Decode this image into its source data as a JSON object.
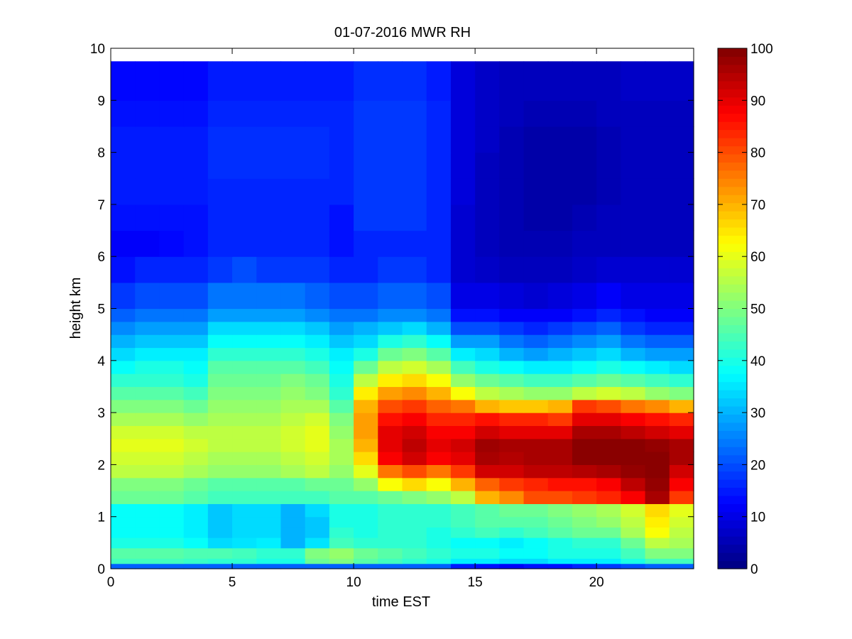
{
  "chart_data": {
    "type": "heatmap",
    "title": "01-07-2016 MWR RH",
    "xlabel": "time EST",
    "ylabel": "height km",
    "xlim": [
      0,
      24
    ],
    "ylim": [
      0,
      10
    ],
    "x_ticks": [
      0,
      5,
      10,
      15,
      20
    ],
    "y_ticks": [
      0,
      1,
      2,
      3,
      4,
      5,
      6,
      7,
      8,
      9,
      10
    ],
    "colorbar": {
      "colormap": "jet",
      "range": [
        0,
        100
      ],
      "ticks": [
        0,
        10,
        20,
        30,
        40,
        50,
        60,
        70,
        80,
        90,
        100
      ]
    },
    "grid": false,
    "x_centers": [
      0.5,
      1.5,
      2.5,
      3.5,
      4.5,
      5.5,
      6.5,
      7.5,
      8.5,
      9.5,
      10.5,
      11.5,
      12.5,
      13.5,
      14.5,
      15.5,
      16.5,
      17.5,
      18.5,
      19.5,
      20.5,
      21.5,
      22.5,
      23.5
    ],
    "x_edges": [
      0,
      1,
      2,
      3,
      4,
      5,
      6,
      7,
      8,
      9,
      10,
      11,
      12,
      13,
      14,
      15,
      16,
      17,
      18,
      19,
      20,
      21,
      22,
      23,
      24
    ],
    "y_edges": [
      0,
      0.1,
      0.2,
      0.4,
      0.6,
      0.8,
      1.0,
      1.25,
      1.5,
      1.75,
      2.0,
      2.25,
      2.5,
      2.75,
      3.0,
      3.25,
      3.5,
      3.75,
      4.0,
      4.25,
      4.5,
      4.75,
      5.0,
      5.5,
      6.0,
      6.5,
      7.0,
      7.5,
      8.0,
      8.5,
      9.0,
      9.75
    ],
    "y_centers": [
      0.05,
      0.15,
      0.3,
      0.5,
      0.7,
      0.9,
      1.125,
      1.375,
      1.625,
      1.875,
      2.125,
      2.375,
      2.625,
      2.875,
      3.125,
      3.375,
      3.625,
      3.875,
      4.125,
      4.375,
      4.625,
      4.875,
      5.25,
      5.75,
      6.25,
      6.75,
      7.25,
      7.75,
      8.25,
      8.75,
      9.375
    ],
    "values": [
      [
        22,
        22,
        22,
        22,
        22,
        22,
        22,
        22,
        22,
        22,
        22,
        22,
        22,
        22,
        15,
        14,
        12,
        14,
        14,
        16,
        18,
        20,
        22,
        22
      ],
      [
        44,
        44,
        44,
        43,
        42,
        42,
        40,
        40,
        48,
        50,
        46,
        44,
        42,
        40,
        36,
        36,
        34,
        34,
        36,
        36,
        36,
        40,
        44,
        44
      ],
      [
        46,
        46,
        46,
        45,
        45,
        44,
        42,
        42,
        50,
        52,
        48,
        46,
        44,
        42,
        40,
        40,
        38,
        38,
        40,
        40,
        40,
        44,
        50,
        50
      ],
      [
        40,
        40,
        40,
        38,
        34,
        35,
        36,
        30,
        35,
        44,
        42,
        42,
        42,
        40,
        38,
        38,
        36,
        38,
        40,
        42,
        42,
        48,
        56,
        54
      ],
      [
        38,
        38,
        38,
        36,
        32,
        34,
        34,
        30,
        32,
        42,
        40,
        42,
        42,
        40,
        42,
        44,
        42,
        44,
        46,
        48,
        48,
        54,
        62,
        56
      ],
      [
        38,
        38,
        38,
        36,
        32,
        34,
        34,
        30,
        32,
        40,
        40,
        42,
        42,
        42,
        44,
        46,
        46,
        46,
        48,
        50,
        52,
        56,
        64,
        58
      ],
      [
        38,
        38,
        38,
        36,
        32,
        34,
        34,
        30,
        34,
        40,
        40,
        42,
        42,
        42,
        44,
        46,
        48,
        48,
        50,
        52,
        54,
        58,
        66,
        60
      ],
      [
        48,
        48,
        48,
        46,
        44,
        44,
        44,
        44,
        44,
        46,
        46,
        48,
        50,
        52,
        56,
        70,
        74,
        80,
        80,
        82,
        84,
        88,
        96,
        82
      ],
      [
        50,
        50,
        50,
        48,
        46,
        46,
        46,
        46,
        48,
        48,
        52,
        62,
        66,
        62,
        70,
        78,
        82,
        84,
        86,
        86,
        88,
        94,
        98,
        88
      ],
      [
        56,
        56,
        56,
        54,
        52,
        52,
        52,
        54,
        56,
        52,
        60,
        76,
        80,
        76,
        82,
        92,
        92,
        94,
        94,
        95,
        96,
        98,
        99,
        92
      ],
      [
        58,
        58,
        58,
        56,
        54,
        54,
        54,
        56,
        58,
        54,
        66,
        88,
        92,
        88,
        90,
        96,
        95,
        96,
        96,
        99,
        99,
        99,
        99,
        96
      ],
      [
        60,
        60,
        60,
        58,
        56,
        56,
        56,
        58,
        60,
        54,
        70,
        90,
        94,
        90,
        92,
        97,
        96,
        96,
        96,
        99,
        99,
        99,
        98,
        96
      ],
      [
        58,
        58,
        58,
        56,
        56,
        56,
        56,
        58,
        60,
        52,
        72,
        90,
        92,
        88,
        88,
        92,
        90,
        90,
        90,
        96,
        96,
        94,
        92,
        90
      ],
      [
        54,
        54,
        54,
        52,
        54,
        54,
        54,
        56,
        58,
        50,
        72,
        86,
        88,
        84,
        84,
        86,
        84,
        84,
        82,
        90,
        90,
        88,
        86,
        84
      ],
      [
        50,
        50,
        50,
        48,
        52,
        52,
        52,
        54,
        54,
        46,
        70,
        80,
        82,
        78,
        76,
        70,
        68,
        68,
        70,
        82,
        80,
        76,
        74,
        70
      ],
      [
        46,
        46,
        46,
        44,
        50,
        50,
        50,
        52,
        50,
        42,
        64,
        72,
        74,
        70,
        62,
        56,
        54,
        52,
        52,
        56,
        58,
        56,
        52,
        50
      ],
      [
        42,
        42,
        42,
        40,
        48,
        48,
        48,
        50,
        48,
        40,
        56,
        64,
        66,
        62,
        52,
        48,
        46,
        44,
        44,
        46,
        48,
        46,
        44,
        42
      ],
      [
        38,
        40,
        40,
        38,
        46,
        46,
        46,
        46,
        44,
        38,
        48,
        56,
        58,
        54,
        44,
        40,
        38,
        36,
        36,
        38,
        40,
        38,
        36,
        34
      ],
      [
        34,
        36,
        36,
        36,
        42,
        42,
        42,
        42,
        40,
        36,
        40,
        48,
        50,
        46,
        36,
        34,
        30,
        28,
        30,
        32,
        34,
        30,
        28,
        28
      ],
      [
        30,
        32,
        32,
        32,
        38,
        38,
        38,
        38,
        36,
        32,
        34,
        40,
        42,
        38,
        28,
        28,
        24,
        22,
        24,
        26,
        28,
        24,
        22,
        22
      ],
      [
        26,
        28,
        28,
        28,
        34,
        34,
        34,
        34,
        32,
        28,
        30,
        32,
        34,
        30,
        20,
        20,
        18,
        16,
        18,
        20,
        22,
        18,
        16,
        16
      ],
      [
        22,
        24,
        24,
        24,
        28,
        28,
        28,
        28,
        26,
        24,
        24,
        26,
        26,
        24,
        14,
        14,
        12,
        12,
        12,
        14,
        16,
        14,
        12,
        12
      ],
      [
        18,
        20,
        20,
        20,
        24,
        24,
        24,
        24,
        22,
        20,
        20,
        22,
        22,
        20,
        10,
        10,
        9,
        8,
        9,
        10,
        12,
        10,
        10,
        10
      ],
      [
        14,
        16,
        16,
        16,
        18,
        20,
        18,
        18,
        18,
        16,
        16,
        18,
        18,
        16,
        8,
        7,
        6,
        6,
        6,
        7,
        8,
        8,
        8,
        8
      ],
      [
        12,
        12,
        13,
        14,
        16,
        16,
        16,
        16,
        16,
        14,
        16,
        16,
        16,
        16,
        8,
        6,
        5,
        5,
        5,
        6,
        6,
        6,
        6,
        6
      ],
      [
        14,
        14,
        14,
        14,
        16,
        16,
        16,
        16,
        16,
        14,
        18,
        18,
        18,
        16,
        8,
        6,
        5,
        4,
        4,
        5,
        6,
        6,
        6,
        6
      ],
      [
        15,
        15,
        15,
        15,
        16,
        16,
        16,
        16,
        16,
        16,
        18,
        18,
        18,
        16,
        9,
        6,
        5,
        4,
        4,
        4,
        5,
        6,
        6,
        6
      ],
      [
        15,
        15,
        15,
        15,
        17,
        17,
        17,
        17,
        17,
        16,
        18,
        18,
        18,
        16,
        9,
        6,
        5,
        4,
        4,
        4,
        5,
        6,
        6,
        6
      ],
      [
        15,
        15,
        15,
        15,
        17,
        17,
        17,
        17,
        17,
        16,
        18,
        18,
        18,
        16,
        9,
        7,
        5,
        4,
        4,
        4,
        5,
        6,
        6,
        6
      ],
      [
        14,
        14,
        14,
        14,
        16,
        16,
        16,
        16,
        16,
        16,
        18,
        18,
        18,
        16,
        9,
        7,
        6,
        5,
        5,
        5,
        6,
        6,
        6,
        6
      ],
      [
        13,
        13,
        13,
        13,
        15,
        15,
        15,
        15,
        15,
        15,
        17,
        17,
        17,
        15,
        9,
        7,
        6,
        6,
        6,
        6,
        6,
        7,
        7,
        7
      ]
    ]
  }
}
